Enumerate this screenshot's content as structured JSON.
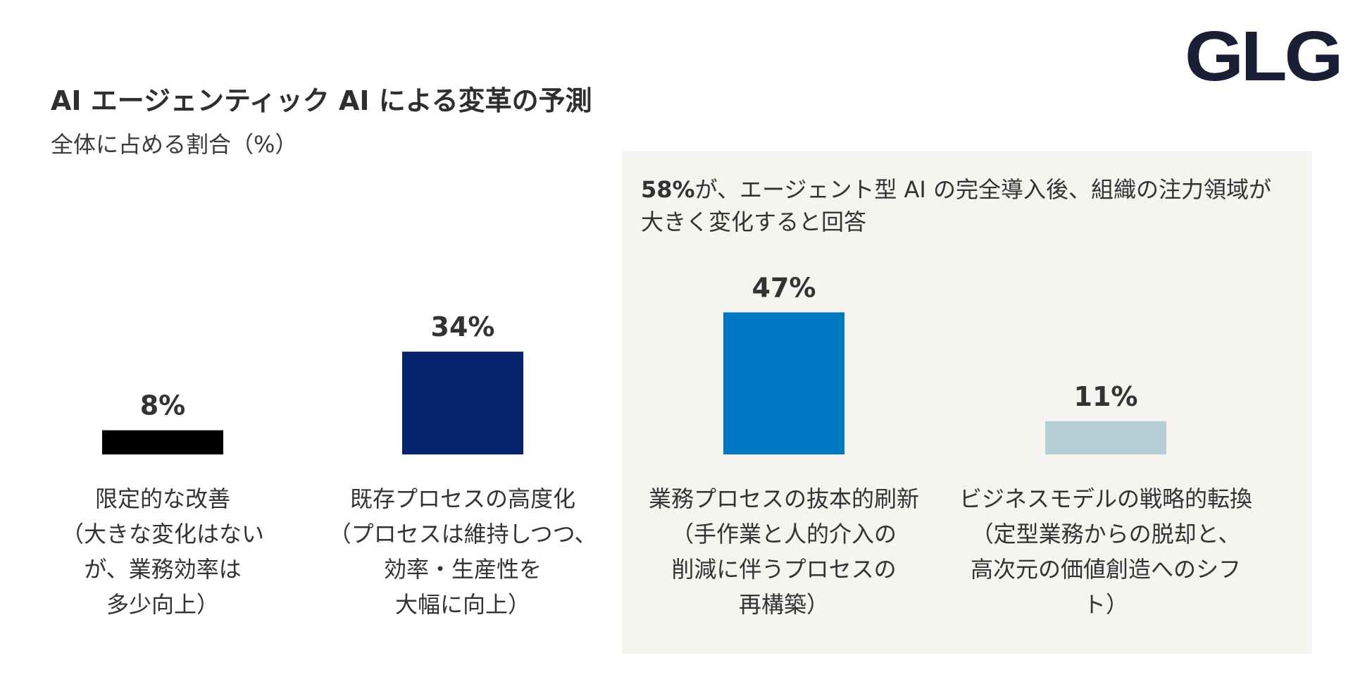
{
  "brand": {
    "logo_text": "GLG"
  },
  "chart_data": {
    "type": "bar",
    "title": "AI エージェンティック AI による変革の予測",
    "subtitle": "全体に占める割合（%）",
    "ylim": [
      0,
      50
    ],
    "grid": false,
    "categories": [
      [
        "限定的な改善",
        "（大きな変化はない",
        "が、業務効率は",
        "多少向上）"
      ],
      [
        "既存プロセスの高度化",
        "（プロセスは維持しつつ、",
        "効率・生産性を",
        "大幅に向上）"
      ],
      [
        "業務プロセスの抜本的刷新",
        "（手作業と人的介入の",
        "削減に伴うプロセスの",
        "再構築）"
      ],
      [
        "ビジネスモデルの戦略的転換",
        "（定型業務からの脱却と、",
        "高次元の価値創造へのシフト）"
      ]
    ],
    "values": [
      8,
      34,
      47,
      11
    ],
    "value_labels": [
      "8%",
      "34%",
      "47%",
      "11%"
    ],
    "colors": [
      "#000000",
      "#06246b",
      "#0078c1",
      "#b5cfd7"
    ],
    "callout": {
      "percent": "58%",
      "line1_rest": "が、エージェント型 AI の完全導入後、組織の注力領域が",
      "line2": "大きく変化すると回答"
    }
  }
}
